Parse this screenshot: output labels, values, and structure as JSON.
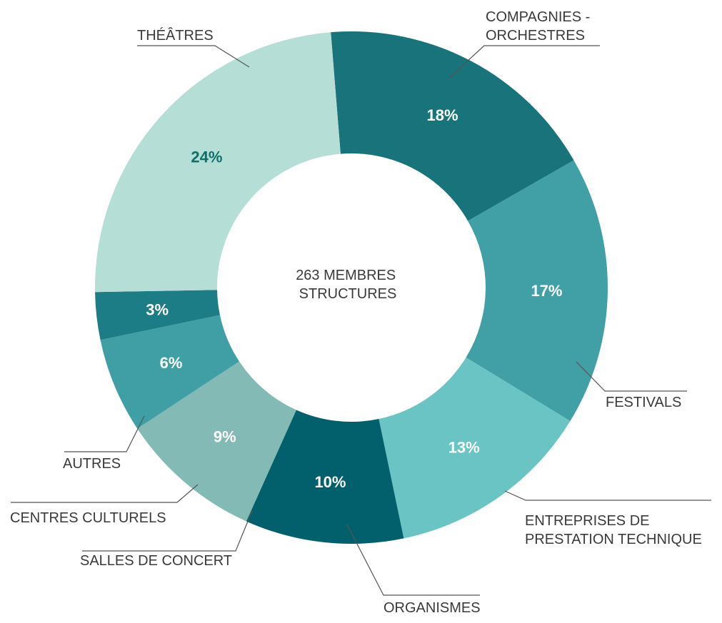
{
  "chart_data": {
    "type": "pie",
    "center_text": [
      "263 MEMBRES",
      "STRUCTURES"
    ],
    "slices": [
      {
        "category": "THÉÂTRES",
        "category_lines": [
          "THÉÂTRES"
        ],
        "value": 18,
        "label": "18%",
        "color": "#18737A",
        "label_color": "#ffffff"
      },
      {
        "category": "COMPAGNIES - ORCHESTRES",
        "category_lines": [
          "COMPAGNIES -",
          "ORCHESTRES"
        ],
        "value": 17,
        "label": "17%",
        "color": "#40A0A6",
        "label_color": "#ffffff"
      },
      {
        "category": "FESTIVALS",
        "category_lines": [
          "FESTIVALS"
        ],
        "value": 13,
        "label": "13%",
        "color": "#6BC4C4",
        "label_color": "#ffffff"
      },
      {
        "category": "ENTREPRISES DE PRESTATION TECHNIQUE",
        "category_lines": [
          "ENTREPRISES DE",
          "PRESTATION TECHNIQUE"
        ],
        "value": 10,
        "label": "10%",
        "color": "#01606B",
        "label_color": "#ffffff"
      },
      {
        "category": "ORGANISMES",
        "category_lines": [
          "ORGANISMES"
        ],
        "value": 9,
        "label": "9%",
        "color": "#84BAB6",
        "label_color": "#ffffff"
      },
      {
        "category": "SALLES DE CONCERT",
        "category_lines": [
          "SALLES DE CONCERT"
        ],
        "value": 6,
        "label": "6%",
        "color": "#3F9FA5",
        "label_color": "#ffffff"
      },
      {
        "category": "CENTRES CULTURELS",
        "category_lines": [
          "CENTRES CULTURELS"
        ],
        "value": 3,
        "label": "3%",
        "color": "#1D7D86",
        "label_color": "#ffffff"
      },
      {
        "category": "AUTRES",
        "category_lines": [
          "AUTRES"
        ],
        "value": 24,
        "label": "24%",
        "color": "#B5DFD6",
        "label_color": "#0F6F6A"
      }
    ]
  }
}
